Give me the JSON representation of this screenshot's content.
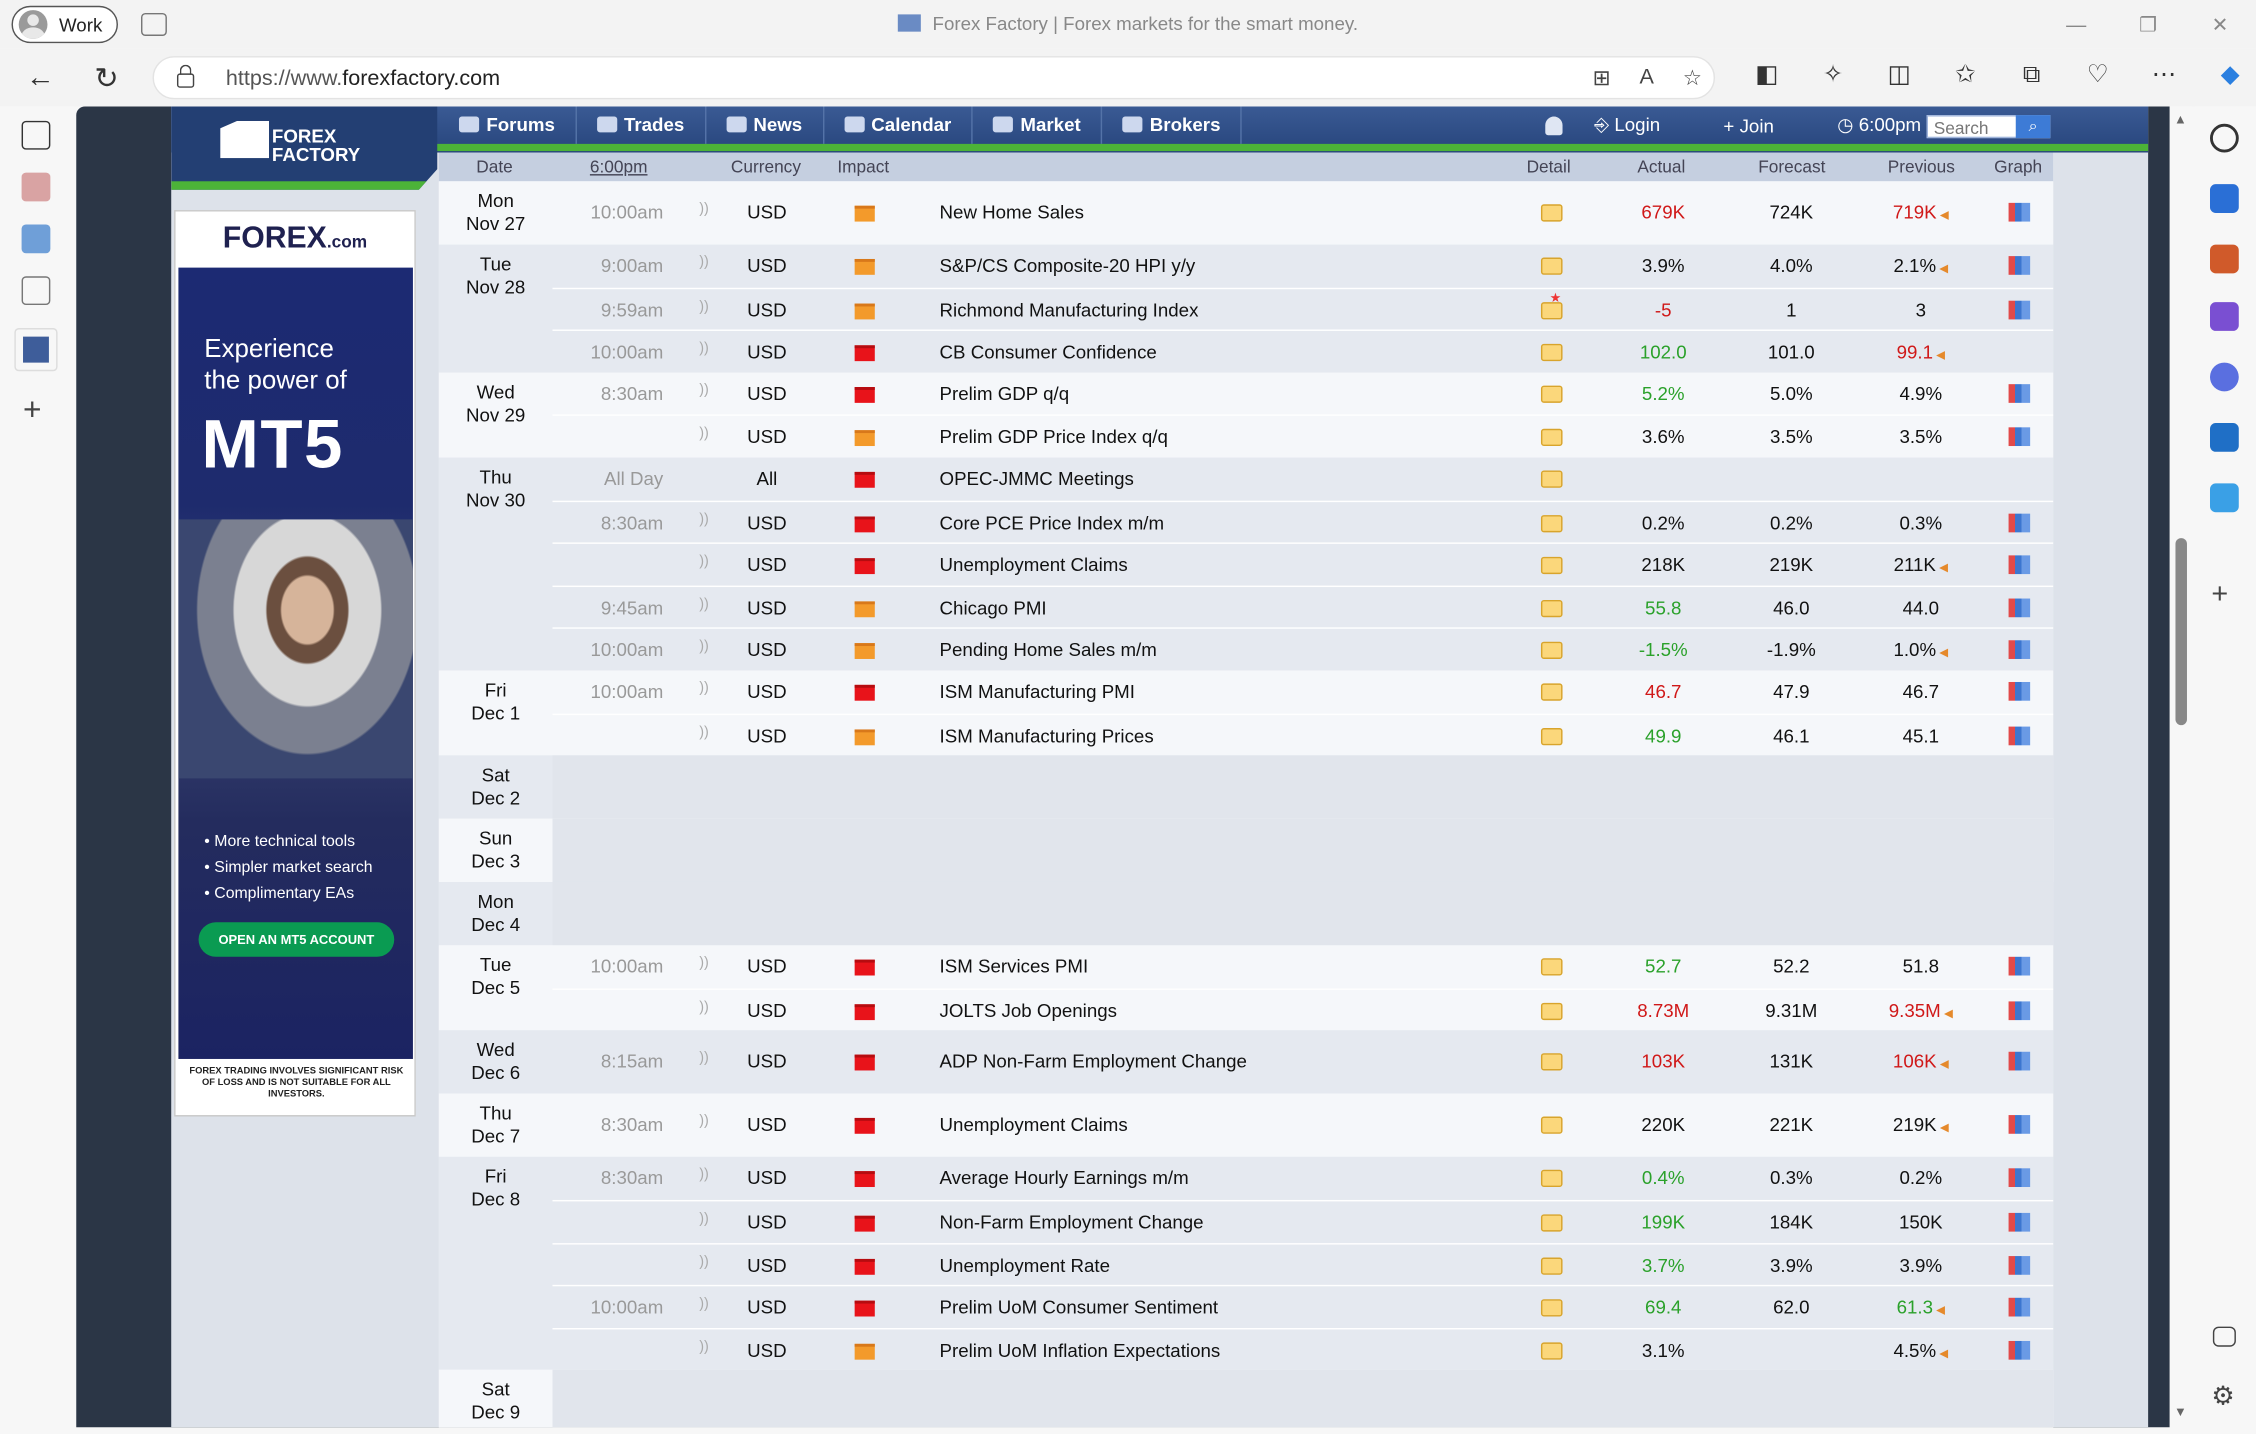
{
  "browser": {
    "profile": "Work",
    "window_title": "Forex Factory | Forex markets for the smart money.",
    "url_prefix": "https://www.",
    "url_domain": "forexfactory.com"
  },
  "site": {
    "logo_line1": "FOREX",
    "logo_line2": "FACTORY",
    "menu": [
      "Forums",
      "Trades",
      "News",
      "Calendar",
      "Market",
      "Brokers"
    ],
    "login": "Login",
    "join": "Join",
    "time": "6:00pm",
    "search_placeholder": "Search"
  },
  "ad": {
    "brand": "FOREX",
    "brand_suffix": ".com",
    "headline": "Experience the power of",
    "product": "MT5",
    "bullets": [
      "More technical tools",
      "Simpler market search",
      "Complimentary EAs"
    ],
    "cta": "OPEN AN MT5 ACCOUNT",
    "disclaimer": "FOREX TRADING INVOLVES SIGNIFICANT RISK OF LOSS AND IS NOT SUITABLE FOR ALL INVESTORS."
  },
  "calendar": {
    "headers": {
      "date": "Date",
      "time": "6:00pm",
      "currency": "Currency",
      "impact": "Impact",
      "detail": "Detail",
      "actual": "Actual",
      "forecast": "Forecast",
      "previous": "Previous",
      "graph": "Graph"
    },
    "days": [
      {
        "day": "Mon",
        "date": "Nov 27",
        "events": [
          {
            "time": "10:00am",
            "cur": "USD",
            "impact": "orange",
            "name": "New Home Sales",
            "actual": "679K",
            "actual_color": "red",
            "forecast": "724K",
            "previous": "719K",
            "previous_color": "red",
            "revised": true,
            "graph": true
          }
        ]
      },
      {
        "day": "Tue",
        "date": "Nov 28",
        "events": [
          {
            "time": "9:00am",
            "cur": "USD",
            "impact": "orange",
            "name": "S&P/CS Composite-20 HPI y/y",
            "actual": "3.9%",
            "actual_color": "",
            "forecast": "4.0%",
            "previous": "2.1%",
            "previous_color": "",
            "revised": true,
            "graph": true
          },
          {
            "time": "9:59am",
            "cur": "USD",
            "impact": "orange",
            "name": "Richmond Manufacturing Index",
            "actual": "-5",
            "actual_color": "red",
            "forecast": "1",
            "previous": "3",
            "previous_color": "",
            "revised": false,
            "graph": true,
            "star": true
          },
          {
            "time": "10:00am",
            "cur": "USD",
            "impact": "red",
            "name": "CB Consumer Confidence",
            "actual": "102.0",
            "actual_color": "green",
            "forecast": "101.0",
            "previous": "99.1",
            "previous_color": "red",
            "revised": true,
            "graph": false
          }
        ]
      },
      {
        "day": "Wed",
        "date": "Nov 29",
        "events": [
          {
            "time": "8:30am",
            "cur": "USD",
            "impact": "red",
            "name": "Prelim GDP q/q",
            "actual": "5.2%",
            "actual_color": "green",
            "forecast": "5.0%",
            "previous": "4.9%",
            "previous_color": "",
            "revised": false,
            "graph": true
          },
          {
            "time": "",
            "cur": "USD",
            "impact": "orange",
            "name": "Prelim GDP Price Index q/q",
            "actual": "3.6%",
            "actual_color": "",
            "forecast": "3.5%",
            "previous": "3.5%",
            "previous_color": "",
            "revised": false,
            "graph": true
          }
        ]
      },
      {
        "day": "Thu",
        "date": "Nov 30",
        "events": [
          {
            "time": "All Day",
            "cur": "All",
            "impact": "red",
            "name": "OPEC-JMMC Meetings",
            "actual": "",
            "actual_color": "",
            "forecast": "",
            "previous": "",
            "previous_color": "",
            "revised": false,
            "graph": false,
            "nosound": true
          },
          {
            "time": "8:30am",
            "cur": "USD",
            "impact": "red",
            "name": "Core PCE Price Index m/m",
            "actual": "0.2%",
            "actual_color": "",
            "forecast": "0.2%",
            "previous": "0.3%",
            "previous_color": "",
            "revised": false,
            "graph": true
          },
          {
            "time": "",
            "cur": "USD",
            "impact": "red",
            "name": "Unemployment Claims",
            "actual": "218K",
            "actual_color": "",
            "forecast": "219K",
            "previous": "211K",
            "previous_color": "",
            "revised": true,
            "graph": true
          },
          {
            "time": "9:45am",
            "cur": "USD",
            "impact": "orange",
            "name": "Chicago PMI",
            "actual": "55.8",
            "actual_color": "green",
            "forecast": "46.0",
            "previous": "44.0",
            "previous_color": "",
            "revised": false,
            "graph": true
          },
          {
            "time": "10:00am",
            "cur": "USD",
            "impact": "orange",
            "name": "Pending Home Sales m/m",
            "actual": "-1.5%",
            "actual_color": "green",
            "forecast": "-1.9%",
            "previous": "1.0%",
            "previous_color": "",
            "revised": true,
            "graph": true
          }
        ]
      },
      {
        "day": "Fri",
        "date": "Dec 1",
        "events": [
          {
            "time": "10:00am",
            "cur": "USD",
            "impact": "red",
            "name": "ISM Manufacturing PMI",
            "actual": "46.7",
            "actual_color": "red",
            "forecast": "47.9",
            "previous": "46.7",
            "previous_color": "",
            "revised": false,
            "graph": true
          },
          {
            "time": "",
            "cur": "USD",
            "impact": "orange",
            "name": "ISM Manufacturing Prices",
            "actual": "49.9",
            "actual_color": "green",
            "forecast": "46.1",
            "previous": "45.1",
            "previous_color": "",
            "revised": false,
            "graph": true
          }
        ]
      },
      {
        "day": "Sat",
        "date": "Dec 2",
        "events": []
      },
      {
        "day": "Sun",
        "date": "Dec 3",
        "events": []
      },
      {
        "day": "Mon",
        "date": "Dec 4",
        "events": []
      },
      {
        "day": "Tue",
        "date": "Dec 5",
        "events": [
          {
            "time": "10:00am",
            "cur": "USD",
            "impact": "red",
            "name": "ISM Services PMI",
            "actual": "52.7",
            "actual_color": "green",
            "forecast": "52.2",
            "previous": "51.8",
            "previous_color": "",
            "revised": false,
            "graph": true
          },
          {
            "time": "",
            "cur": "USD",
            "impact": "red",
            "name": "JOLTS Job Openings",
            "actual": "8.73M",
            "actual_color": "red",
            "forecast": "9.31M",
            "previous": "9.35M",
            "previous_color": "red",
            "revised": true,
            "graph": true
          }
        ]
      },
      {
        "day": "Wed",
        "date": "Dec 6",
        "events": [
          {
            "time": "8:15am",
            "cur": "USD",
            "impact": "red",
            "name": "ADP Non-Farm Employment Change",
            "actual": "103K",
            "actual_color": "red",
            "forecast": "131K",
            "previous": "106K",
            "previous_color": "red",
            "revised": true,
            "graph": true
          }
        ]
      },
      {
        "day": "Thu",
        "date": "Dec 7",
        "events": [
          {
            "time": "8:30am",
            "cur": "USD",
            "impact": "red",
            "name": "Unemployment Claims",
            "actual": "220K",
            "actual_color": "",
            "forecast": "221K",
            "previous": "219K",
            "previous_color": "",
            "revised": true,
            "graph": true
          }
        ]
      },
      {
        "day": "Fri",
        "date": "Dec 8",
        "events": [
          {
            "time": "8:30am",
            "cur": "USD",
            "impact": "red",
            "name": "Average Hourly Earnings m/m",
            "actual": "0.4%",
            "actual_color": "green",
            "forecast": "0.3%",
            "previous": "0.2%",
            "previous_color": "",
            "revised": false,
            "graph": true
          },
          {
            "time": "",
            "cur": "USD",
            "impact": "red",
            "name": "Non-Farm Employment Change",
            "actual": "199K",
            "actual_color": "green",
            "forecast": "184K",
            "previous": "150K",
            "previous_color": "",
            "revised": false,
            "graph": true
          },
          {
            "time": "",
            "cur": "USD",
            "impact": "red",
            "name": "Unemployment Rate",
            "actual": "3.7%",
            "actual_color": "green",
            "forecast": "3.9%",
            "previous": "3.9%",
            "previous_color": "",
            "revised": false,
            "graph": true
          },
          {
            "time": "10:00am",
            "cur": "USD",
            "impact": "red",
            "name": "Prelim UoM Consumer Sentiment",
            "actual": "69.4",
            "actual_color": "green",
            "forecast": "62.0",
            "previous": "61.3",
            "previous_color": "green",
            "revised": true,
            "graph": true
          },
          {
            "time": "",
            "cur": "USD",
            "impact": "orange",
            "name": "Prelim UoM Inflation Expectations",
            "actual": "3.1%",
            "actual_color": "",
            "forecast": "",
            "previous": "4.5%",
            "previous_color": "",
            "revised": true,
            "graph": true
          }
        ]
      },
      {
        "day": "Sat",
        "date": "Dec 9",
        "events": []
      }
    ]
  },
  "colors": {
    "red": "#d01818",
    "green": "#2aa12a",
    "impact_red": "#e8131a",
    "impact_orange": "#f39a2b"
  }
}
